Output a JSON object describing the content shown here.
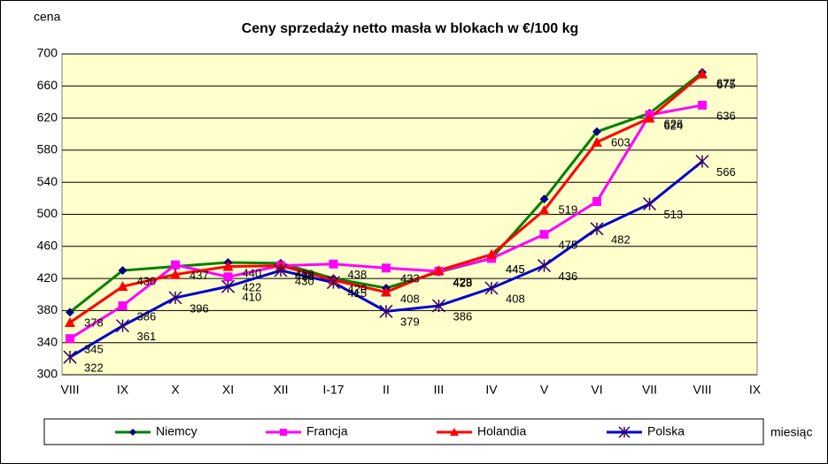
{
  "chart_data": {
    "type": "line",
    "title": "Ceny sprzedaży netto masła w blokach w €/100 kg",
    "y_label": "cena",
    "x_label": "miesiąc",
    "categories": [
      "VIII",
      "IX",
      "X",
      "XI",
      "XII",
      "I-17",
      "II",
      "III",
      "IV",
      "V",
      "VI",
      "VII",
      "VIII",
      "IX"
    ],
    "series": [
      {
        "name": "Niemcy",
        "color": "#008000",
        "marker": "diamond",
        "marker_color": "#000080",
        "values": [
          378,
          430,
          435,
          440,
          439,
          420,
          408,
          428,
          445,
          519,
          603,
          626,
          677,
          null
        ],
        "value_labels": [
          "378",
          "430",
          null,
          "440",
          "439",
          "420",
          "408",
          "428",
          "445",
          "519",
          "603",
          "626",
          "677",
          null
        ]
      },
      {
        "name": "Francja",
        "color": "#ff00ff",
        "marker": "square",
        "marker_color": "#ff00ff",
        "values": [
          345,
          386,
          437,
          422,
          436,
          438,
          433,
          429,
          445,
          475,
          516,
          624,
          636,
          null
        ],
        "value_labels": [
          "345",
          "386",
          "437",
          "422",
          "436",
          "438",
          "433",
          "429",
          "445",
          "475",
          null,
          "624",
          "636",
          null
        ]
      },
      {
        "name": "Holandia",
        "color": "#ff0000",
        "marker": "triangle",
        "marker_color": "#ff0000",
        "values": [
          365,
          410,
          425,
          435,
          436,
          418,
          403,
          430,
          450,
          505,
          590,
          620,
          675,
          null
        ],
        "value_labels": [
          null,
          null,
          null,
          null,
          null,
          null,
          null,
          null,
          null,
          null,
          null,
          null,
          "675",
          null
        ]
      },
      {
        "name": "Polska",
        "color": "#0000cc",
        "marker": "star",
        "marker_color": "#330066",
        "values": [
          322,
          361,
          396,
          410,
          430,
          415,
          379,
          386,
          408,
          436,
          482,
          513,
          566,
          null
        ],
        "value_labels": [
          "322",
          "361",
          "396",
          "410",
          "430",
          "415",
          "379",
          "386",
          "408",
          "436",
          "482",
          "513",
          "566",
          null
        ]
      }
    ],
    "ylim": [
      300,
      700
    ],
    "yticks": [
      300,
      340,
      380,
      420,
      460,
      500,
      540,
      580,
      620,
      660,
      700
    ],
    "grid": true,
    "plot_background": "#ffffcc"
  }
}
